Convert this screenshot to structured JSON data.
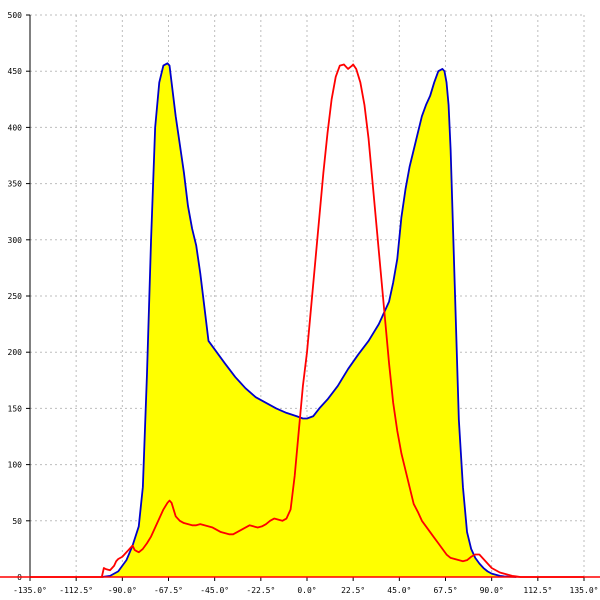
{
  "chart_data": {
    "type": "area",
    "xlim": [
      -135,
      135
    ],
    "ylim": [
      0,
      500
    ],
    "grid": true,
    "x_ticks": [
      {
        "value": -135,
        "label": "-135.0°"
      },
      {
        "value": -112.5,
        "label": "-112.5°"
      },
      {
        "value": -90,
        "label": "-90.0°"
      },
      {
        "value": -67.5,
        "label": "-67.5°"
      },
      {
        "value": -45,
        "label": "-45.0°"
      },
      {
        "value": -22.5,
        "label": "-22.5°"
      },
      {
        "value": 0,
        "label": "0.0°"
      },
      {
        "value": 22.5,
        "label": "22.5°"
      },
      {
        "value": 45,
        "label": "45.0°"
      },
      {
        "value": 67.5,
        "label": "67.5°"
      },
      {
        "value": 90,
        "label": "90.0°"
      },
      {
        "value": 112.5,
        "label": "112.5°"
      },
      {
        "value": 135,
        "label": "135.0°"
      }
    ],
    "y_ticks": [
      {
        "value": 0,
        "label": "0"
      },
      {
        "value": 50,
        "label": "50"
      },
      {
        "value": 100,
        "label": "100"
      },
      {
        "value": 150,
        "label": "150"
      },
      {
        "value": 200,
        "label": "200"
      },
      {
        "value": 250,
        "label": "250"
      },
      {
        "value": 300,
        "label": "300"
      },
      {
        "value": 350,
        "label": "350"
      },
      {
        "value": 400,
        "label": "400"
      },
      {
        "value": 450,
        "label": "450"
      },
      {
        "value": 500,
        "label": "500"
      }
    ],
    "series": [
      {
        "line_color": "#0000cc",
        "fill_color": "#ffff00",
        "filled": true,
        "x": [
          -100,
          -96,
          -92,
          -88,
          -85,
          -82,
          -80,
          -78,
          -76,
          -74,
          -72,
          -70,
          -68,
          -67,
          -66,
          -64,
          -62,
          -60,
          -58,
          -56,
          -54,
          -52,
          -50,
          -48,
          -46,
          -44,
          -42,
          -40,
          -35,
          -30,
          -25,
          -20,
          -15,
          -10,
          -5,
          -2,
          0,
          3,
          6,
          10,
          15,
          20,
          25,
          30,
          35,
          40,
          42,
          44,
          46,
          48,
          50,
          52,
          54,
          56,
          58,
          60,
          62,
          64,
          66,
          67,
          68,
          69,
          70,
          72,
          74,
          76,
          78,
          80,
          82,
          84,
          86,
          88,
          90,
          92,
          94,
          96,
          98,
          100,
          102
        ],
        "y": [
          0,
          1,
          5,
          15,
          28,
          45,
          80,
          180,
          300,
          400,
          440,
          455,
          457,
          455,
          440,
          410,
          385,
          360,
          330,
          310,
          295,
          270,
          240,
          210,
          205,
          200,
          195,
          190,
          178,
          168,
          160,
          155,
          150,
          146,
          143,
          141,
          141,
          143,
          150,
          158,
          170,
          185,
          198,
          210,
          225,
          245,
          262,
          283,
          320,
          345,
          365,
          380,
          395,
          410,
          420,
          428,
          440,
          450,
          452,
          450,
          440,
          420,
          380,
          260,
          140,
          80,
          40,
          25,
          17,
          12,
          8,
          5,
          3,
          2,
          1,
          0.5,
          0.3,
          0.2,
          0
        ]
      },
      {
        "line_color": "#ff0000",
        "filled": false,
        "x": [
          -135,
          -100,
          -99,
          -98,
          -96,
          -94,
          -93,
          -92,
          -90,
          -88,
          -86,
          -85,
          -84,
          -83,
          -82,
          -80,
          -78,
          -76,
          -74,
          -72,
          -70,
          -68,
          -67,
          -66,
          -65,
          -64,
          -62,
          -60,
          -58,
          -56,
          -54,
          -52,
          -50,
          -48,
          -46,
          -44,
          -42,
          -40,
          -38,
          -36,
          -34,
          -32,
          -30,
          -28,
          -26,
          -24,
          -22,
          -20,
          -18,
          -16,
          -14,
          -12,
          -10,
          -8,
          -6,
          -4,
          -2,
          0,
          2,
          4,
          6,
          8,
          10,
          12,
          14,
          16,
          18,
          20,
          22,
          22.5,
          24,
          26,
          28,
          30,
          32,
          34,
          36,
          38,
          40,
          42,
          44,
          46,
          48,
          50,
          52,
          54,
          56,
          58,
          60,
          62,
          64,
          66,
          68,
          70,
          72,
          74,
          76,
          78,
          80,
          82,
          84,
          86,
          88,
          90,
          92,
          94,
          96,
          98,
          100,
          102,
          104,
          135
        ],
        "y": [
          0,
          0,
          8,
          7,
          6,
          10,
          14,
          16,
          18,
          22,
          26,
          28,
          24,
          23,
          22,
          25,
          30,
          36,
          44,
          52,
          60,
          66,
          68,
          66,
          60,
          54,
          50,
          48,
          47,
          46,
          46,
          47,
          46,
          45,
          44,
          42,
          40,
          39,
          38,
          38,
          40,
          42,
          44,
          46,
          45,
          44,
          45,
          47,
          50,
          52,
          51,
          50,
          52,
          60,
          90,
          130,
          170,
          200,
          240,
          280,
          320,
          360,
          395,
          425,
          445,
          455,
          456,
          452,
          455,
          456,
          452,
          440,
          420,
          390,
          350,
          310,
          270,
          230,
          190,
          155,
          130,
          110,
          95,
          80,
          65,
          58,
          50,
          45,
          40,
          35,
          30,
          25,
          20,
          17,
          16,
          15,
          14,
          15,
          18,
          20,
          20,
          16,
          12,
          8,
          6,
          4,
          3,
          2,
          1,
          0.5,
          0,
          0
        ]
      }
    ]
  }
}
